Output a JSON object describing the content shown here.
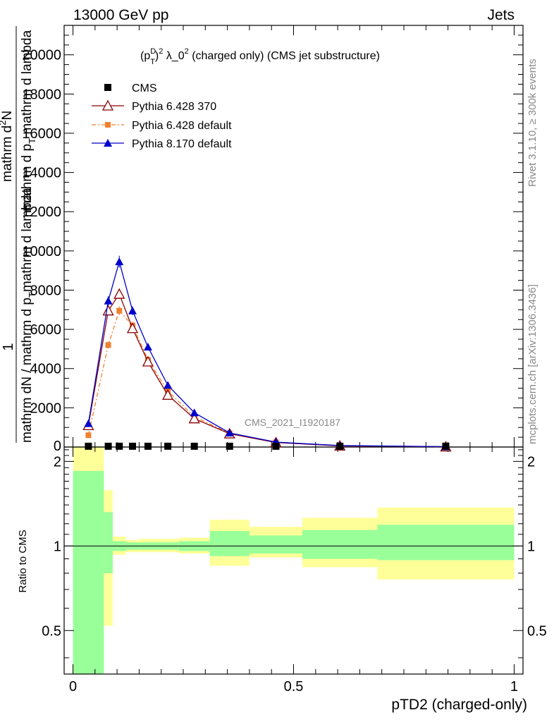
{
  "header": {
    "left": "13000 GeV pp",
    "right": "Jets"
  },
  "colors": {
    "data": "#000000",
    "p6_370": "#8b0000",
    "p6_def": "#f08030",
    "p8": "#0000cc",
    "band_outer": "#ffff99",
    "band_inner": "#99ff99"
  },
  "chart_data": {
    "type": "line",
    "title": "(p_T^D)^2 λ_0^2 (charged only) (CMS jet substructure)",
    "title_parts": {
      "a": "(p",
      "sup_d": "D",
      "sub_t": "T",
      "b": ")",
      "sup2a": "2",
      "c": " λ_0",
      "sup2b": "2",
      "d": " (charged only) (CMS jet substructure)"
    },
    "ylabel_lines": [
      "1",
      "mathrm dN / mathrm d p_T mathrm d lambda",
      "mathrm d²N",
      "mathrm d p_T mathrm d lambda"
    ],
    "ylabel_texts": {
      "one": "1",
      "den1": "mathrm dN / mathrm d p",
      "num": "mathrm d",
      "num_sup": "2",
      "num_n": "N",
      "den2": "mathrm d p",
      "den2_b": " mathrm d lambda",
      "den2_sub": "T",
      "den1_b": "mathrm d lambda",
      "den1_sub": "T"
    },
    "xlabel": "pTD2 (charged-only)",
    "ratio_ylabel": "Ratio to CMS",
    "watermark": "CMS_2021_I1920187",
    "side_rivet": "Rivet 3.1.10, ≥ 300k events",
    "side_mcplots": "mcplots.cern.ch [arXiv:1306.3436]",
    "xlim": [
      -0.02,
      1.02
    ],
    "ylim": [
      0,
      21500
    ],
    "yticks": [
      2000,
      4000,
      6000,
      8000,
      10000,
      12000,
      14000,
      16000,
      18000,
      20000
    ],
    "ytick_labels": [
      "2000",
      "4000",
      "6000",
      "8000",
      "10000",
      "12000",
      "14000",
      "16000",
      "18000",
      "20000"
    ],
    "ratio_ylim": [
      0.35,
      2.25
    ],
    "ratio_yticks": [
      0.5,
      1,
      2
    ],
    "ratio_ytick_labels": [
      "0.5",
      "1",
      "2"
    ],
    "xticks": [
      0,
      0.5,
      1
    ],
    "xtick_labels": [
      "0",
      "0.5",
      "1"
    ],
    "bin_edges": [
      0.0,
      0.07,
      0.09,
      0.12,
      0.15,
      0.19,
      0.24,
      0.31,
      0.4,
      0.52,
      0.69,
      1.0
    ],
    "bin_centers": [
      0.035,
      0.08,
      0.105,
      0.135,
      0.17,
      0.215,
      0.275,
      0.355,
      0.46,
      0.605,
      0.845
    ],
    "legend": [
      "CMS",
      "Pythia 6.428 370",
      "Pythia 6.428 default",
      "Pythia 8.170 default"
    ],
    "series": [
      {
        "name": "CMS",
        "values": [
          40,
          40,
          40,
          40,
          40,
          40,
          40,
          40,
          40,
          40,
          40
        ]
      },
      {
        "name": "Pythia 6.428 370",
        "values": [
          1100,
          6950,
          7800,
          6050,
          4350,
          2650,
          1450,
          680,
          230,
          60,
          15
        ]
      },
      {
        "name": "Pythia 6.428 default",
        "values": [
          600,
          5200,
          6950,
          6200,
          4450,
          2850,
          1550,
          700,
          240,
          65,
          15
        ]
      },
      {
        "name": "Pythia 8.170 default",
        "values": [
          1200,
          7450,
          9450,
          6950,
          5100,
          3150,
          1750,
          720,
          250,
          75,
          18
        ]
      }
    ],
    "ratio_bands": {
      "outer": [
        [
          0.35,
          2.25
        ],
        [
          0.52,
          1.58
        ],
        [
          0.93,
          1.08
        ],
        [
          0.95,
          1.05
        ],
        [
          0.95,
          1.06
        ],
        [
          0.95,
          1.06
        ],
        [
          0.94,
          1.07
        ],
        [
          0.85,
          1.24
        ],
        [
          0.91,
          1.17
        ],
        [
          0.84,
          1.26
        ],
        [
          0.76,
          1.37
        ]
      ],
      "inner": [
        [
          0.35,
          1.85
        ],
        [
          0.8,
          1.32
        ],
        [
          0.96,
          1.04
        ],
        [
          0.97,
          1.03
        ],
        [
          0.97,
          1.03
        ],
        [
          0.97,
          1.03
        ],
        [
          0.96,
          1.04
        ],
        [
          0.92,
          1.13
        ],
        [
          0.94,
          1.09
        ],
        [
          0.9,
          1.14
        ],
        [
          0.89,
          1.19
        ]
      ]
    }
  }
}
